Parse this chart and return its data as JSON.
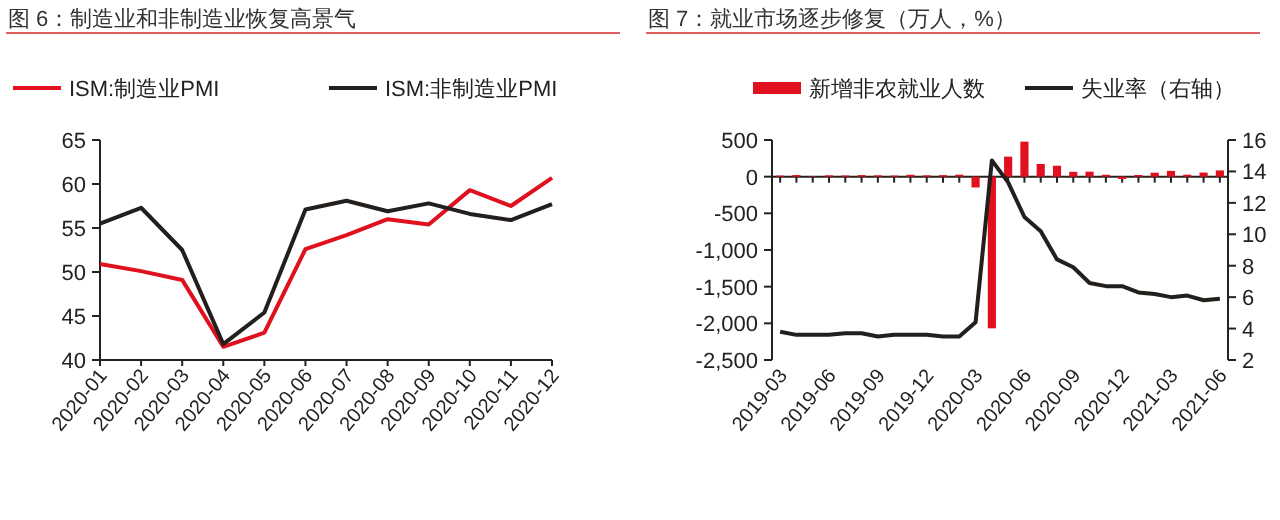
{
  "chart_data": [
    {
      "type": "line",
      "title": "图 6：制造业和非制造业恢复高景气",
      "categories": [
        "2020-01",
        "2020-02",
        "2020-03",
        "2020-04",
        "2020-05",
        "2020-06",
        "2020-07",
        "2020-08",
        "2020-09",
        "2020-10",
        "2020-11",
        "2020-12"
      ],
      "series": [
        {
          "name": "ISM:制造业PMI",
          "color": "#e0101e",
          "values": [
            50.9,
            50.1,
            49.1,
            41.5,
            43.1,
            52.6,
            54.2,
            56.0,
            55.4,
            59.3,
            57.5,
            60.7
          ]
        },
        {
          "name": "ISM:非制造业PMI",
          "color": "#231f1c",
          "values": [
            55.5,
            57.3,
            52.5,
            41.8,
            45.4,
            57.1,
            58.1,
            56.9,
            57.8,
            56.6,
            55.9,
            57.7
          ]
        }
      ],
      "ylim": [
        40,
        65
      ],
      "yticks": [
        40,
        45,
        50,
        55,
        60,
        65
      ],
      "legend": "top",
      "grid": false
    },
    {
      "type": "bar",
      "title": "图 7：就业市场逐步修复（万人，%）",
      "categories": [
        "2019-03",
        null,
        null,
        "2019-06",
        null,
        null,
        "2019-09",
        null,
        null,
        "2019-12",
        null,
        null,
        "2020-03",
        null,
        null,
        "2020-06",
        null,
        null,
        "2020-09",
        null,
        null,
        "2020-12",
        null,
        null,
        "2021-03",
        null,
        null,
        "2021-06"
      ],
      "series": [
        {
          "name": "新增非农就业人数",
          "color": "#e0101e",
          "values": [
            15,
            22,
            6,
            18,
            16,
            21,
            18,
            15,
            26,
            18,
            21,
            27,
            -147,
            -2068,
            273,
            478,
            173,
            149,
            66,
            68,
            26,
            -31,
            23,
            54,
            79,
            27,
            56,
            85
          ]
        },
        {
          "name": "失业率（右轴）",
          "type": "line",
          "axis": "y2",
          "color": "#231f1c",
          "values": [
            3.8,
            3.6,
            3.6,
            3.6,
            3.7,
            3.7,
            3.5,
            3.6,
            3.6,
            3.6,
            3.5,
            3.5,
            4.4,
            14.7,
            13.3,
            11.1,
            10.2,
            8.4,
            7.9,
            6.9,
            6.7,
            6.7,
            6.3,
            6.2,
            6.0,
            6.1,
            5.8,
            5.9
          ]
        }
      ],
      "ylim": [
        -2500,
        500
      ],
      "yticks": [
        {
          "value": -2500,
          "label": "-2,500"
        },
        {
          "value": -2000,
          "label": "-2,000"
        },
        {
          "value": -1500,
          "label": "-1,500"
        },
        {
          "value": -1000,
          "label": "-1,000"
        },
        -500,
        0,
        500
      ],
      "ref_lines": [
        {
          "axis": "y",
          "value": 0,
          "color": "#222222"
        }
      ],
      "y2lim": [
        2,
        16
      ],
      "y2ticks": [
        2,
        4,
        6,
        8,
        10,
        12,
        14,
        16
      ],
      "legend": "top",
      "grid": false
    }
  ]
}
